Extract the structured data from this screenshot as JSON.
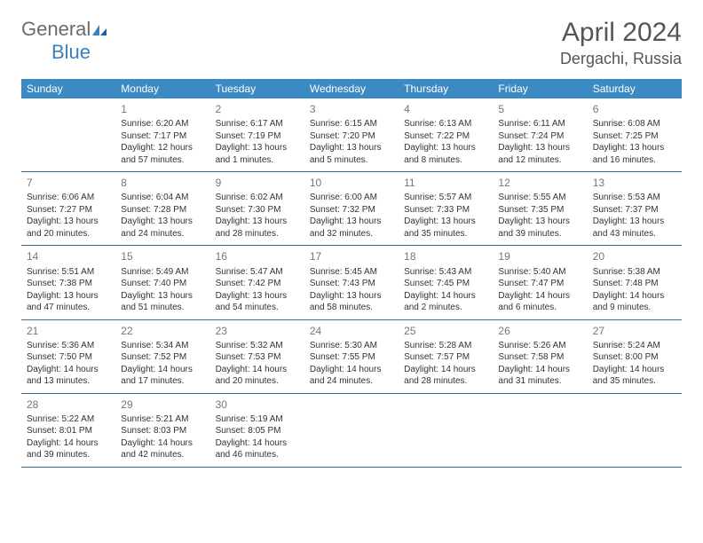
{
  "logo": {
    "general": "General",
    "blue": "Blue"
  },
  "title": "April 2024",
  "location": "Dergachi, Russia",
  "day_names": [
    "Sunday",
    "Monday",
    "Tuesday",
    "Wednesday",
    "Thursday",
    "Friday",
    "Saturday"
  ],
  "colors": {
    "header_bg": "#3b8ac4",
    "header_text": "#ffffff",
    "border": "#3b6ea3",
    "daynum": "#777777",
    "body_text": "#333333",
    "title_text": "#555555",
    "logo_gray": "#6b6b6b",
    "logo_blue": "#3b7fbf",
    "background": "#ffffff"
  },
  "fonts": {
    "title_size": 30,
    "location_size": 18,
    "dayhead_size": 12,
    "cell_size": 10
  },
  "weeks": [
    [
      {
        "day": "",
        "lines": []
      },
      {
        "day": "1",
        "lines": [
          "Sunrise: 6:20 AM",
          "Sunset: 7:17 PM",
          "Daylight: 12 hours",
          "and 57 minutes."
        ]
      },
      {
        "day": "2",
        "lines": [
          "Sunrise: 6:17 AM",
          "Sunset: 7:19 PM",
          "Daylight: 13 hours",
          "and 1 minutes."
        ]
      },
      {
        "day": "3",
        "lines": [
          "Sunrise: 6:15 AM",
          "Sunset: 7:20 PM",
          "Daylight: 13 hours",
          "and 5 minutes."
        ]
      },
      {
        "day": "4",
        "lines": [
          "Sunrise: 6:13 AM",
          "Sunset: 7:22 PM",
          "Daylight: 13 hours",
          "and 8 minutes."
        ]
      },
      {
        "day": "5",
        "lines": [
          "Sunrise: 6:11 AM",
          "Sunset: 7:24 PM",
          "Daylight: 13 hours",
          "and 12 minutes."
        ]
      },
      {
        "day": "6",
        "lines": [
          "Sunrise: 6:08 AM",
          "Sunset: 7:25 PM",
          "Daylight: 13 hours",
          "and 16 minutes."
        ]
      }
    ],
    [
      {
        "day": "7",
        "lines": [
          "Sunrise: 6:06 AM",
          "Sunset: 7:27 PM",
          "Daylight: 13 hours",
          "and 20 minutes."
        ]
      },
      {
        "day": "8",
        "lines": [
          "Sunrise: 6:04 AM",
          "Sunset: 7:28 PM",
          "Daylight: 13 hours",
          "and 24 minutes."
        ]
      },
      {
        "day": "9",
        "lines": [
          "Sunrise: 6:02 AM",
          "Sunset: 7:30 PM",
          "Daylight: 13 hours",
          "and 28 minutes."
        ]
      },
      {
        "day": "10",
        "lines": [
          "Sunrise: 6:00 AM",
          "Sunset: 7:32 PM",
          "Daylight: 13 hours",
          "and 32 minutes."
        ]
      },
      {
        "day": "11",
        "lines": [
          "Sunrise: 5:57 AM",
          "Sunset: 7:33 PM",
          "Daylight: 13 hours",
          "and 35 minutes."
        ]
      },
      {
        "day": "12",
        "lines": [
          "Sunrise: 5:55 AM",
          "Sunset: 7:35 PM",
          "Daylight: 13 hours",
          "and 39 minutes."
        ]
      },
      {
        "day": "13",
        "lines": [
          "Sunrise: 5:53 AM",
          "Sunset: 7:37 PM",
          "Daylight: 13 hours",
          "and 43 minutes."
        ]
      }
    ],
    [
      {
        "day": "14",
        "lines": [
          "Sunrise: 5:51 AM",
          "Sunset: 7:38 PM",
          "Daylight: 13 hours",
          "and 47 minutes."
        ]
      },
      {
        "day": "15",
        "lines": [
          "Sunrise: 5:49 AM",
          "Sunset: 7:40 PM",
          "Daylight: 13 hours",
          "and 51 minutes."
        ]
      },
      {
        "day": "16",
        "lines": [
          "Sunrise: 5:47 AM",
          "Sunset: 7:42 PM",
          "Daylight: 13 hours",
          "and 54 minutes."
        ]
      },
      {
        "day": "17",
        "lines": [
          "Sunrise: 5:45 AM",
          "Sunset: 7:43 PM",
          "Daylight: 13 hours",
          "and 58 minutes."
        ]
      },
      {
        "day": "18",
        "lines": [
          "Sunrise: 5:43 AM",
          "Sunset: 7:45 PM",
          "Daylight: 14 hours",
          "and 2 minutes."
        ]
      },
      {
        "day": "19",
        "lines": [
          "Sunrise: 5:40 AM",
          "Sunset: 7:47 PM",
          "Daylight: 14 hours",
          "and 6 minutes."
        ]
      },
      {
        "day": "20",
        "lines": [
          "Sunrise: 5:38 AM",
          "Sunset: 7:48 PM",
          "Daylight: 14 hours",
          "and 9 minutes."
        ]
      }
    ],
    [
      {
        "day": "21",
        "lines": [
          "Sunrise: 5:36 AM",
          "Sunset: 7:50 PM",
          "Daylight: 14 hours",
          "and 13 minutes."
        ]
      },
      {
        "day": "22",
        "lines": [
          "Sunrise: 5:34 AM",
          "Sunset: 7:52 PM",
          "Daylight: 14 hours",
          "and 17 minutes."
        ]
      },
      {
        "day": "23",
        "lines": [
          "Sunrise: 5:32 AM",
          "Sunset: 7:53 PM",
          "Daylight: 14 hours",
          "and 20 minutes."
        ]
      },
      {
        "day": "24",
        "lines": [
          "Sunrise: 5:30 AM",
          "Sunset: 7:55 PM",
          "Daylight: 14 hours",
          "and 24 minutes."
        ]
      },
      {
        "day": "25",
        "lines": [
          "Sunrise: 5:28 AM",
          "Sunset: 7:57 PM",
          "Daylight: 14 hours",
          "and 28 minutes."
        ]
      },
      {
        "day": "26",
        "lines": [
          "Sunrise: 5:26 AM",
          "Sunset: 7:58 PM",
          "Daylight: 14 hours",
          "and 31 minutes."
        ]
      },
      {
        "day": "27",
        "lines": [
          "Sunrise: 5:24 AM",
          "Sunset: 8:00 PM",
          "Daylight: 14 hours",
          "and 35 minutes."
        ]
      }
    ],
    [
      {
        "day": "28",
        "lines": [
          "Sunrise: 5:22 AM",
          "Sunset: 8:01 PM",
          "Daylight: 14 hours",
          "and 39 minutes."
        ]
      },
      {
        "day": "29",
        "lines": [
          "Sunrise: 5:21 AM",
          "Sunset: 8:03 PM",
          "Daylight: 14 hours",
          "and 42 minutes."
        ]
      },
      {
        "day": "30",
        "lines": [
          "Sunrise: 5:19 AM",
          "Sunset: 8:05 PM",
          "Daylight: 14 hours",
          "and 46 minutes."
        ]
      },
      {
        "day": "",
        "lines": []
      },
      {
        "day": "",
        "lines": []
      },
      {
        "day": "",
        "lines": []
      },
      {
        "day": "",
        "lines": []
      }
    ]
  ]
}
